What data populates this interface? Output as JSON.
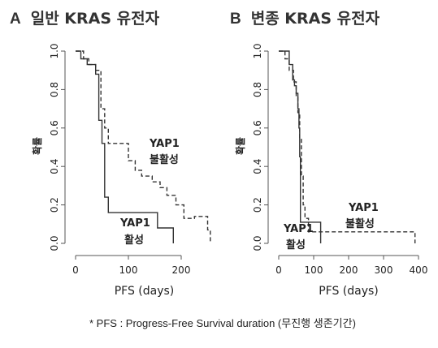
{
  "figure": {
    "footnote": "* PFS : Progress-Free Survival duration (무진행 생존기간)"
  },
  "chart_data": [
    {
      "type": "line",
      "step": true,
      "panel_letter": "A",
      "title": "일반 KRAS 유전자",
      "xlabel": "PFS (days)",
      "ylabel": "확률",
      "xlim": [
        0,
        260
      ],
      "ylim": [
        0,
        1.0
      ],
      "xticks": [
        0,
        100,
        200
      ],
      "yticks": [
        0.0,
        0.2,
        0.4,
        0.6,
        0.8,
        1.0
      ],
      "grid": false,
      "series": [
        {
          "name": "YAP1 활성",
          "line_style": "solid",
          "points": [
            [
              0,
              1.0
            ],
            [
              10,
              1.0
            ],
            [
              10,
              0.96
            ],
            [
              22,
              0.96
            ],
            [
              22,
              0.93
            ],
            [
              38,
              0.93
            ],
            [
              38,
              0.88
            ],
            [
              44,
              0.88
            ],
            [
              44,
              0.64
            ],
            [
              50,
              0.64
            ],
            [
              50,
              0.52
            ],
            [
              55,
              0.52
            ],
            [
              55,
              0.24
            ],
            [
              62,
              0.24
            ],
            [
              62,
              0.16
            ],
            [
              155,
              0.16
            ],
            [
              155,
              0.08
            ],
            [
              185,
              0.08
            ],
            [
              185,
              0.0
            ]
          ]
        },
        {
          "name": "YAP1 불활성",
          "line_style": "dashed",
          "points": [
            [
              0,
              1.0
            ],
            [
              15,
              1.0
            ],
            [
              15,
              0.96
            ],
            [
              25,
              0.96
            ],
            [
              25,
              0.93
            ],
            [
              38,
              0.93
            ],
            [
              38,
              0.9
            ],
            [
              48,
              0.9
            ],
            [
              48,
              0.7
            ],
            [
              55,
              0.7
            ],
            [
              55,
              0.6
            ],
            [
              62,
              0.6
            ],
            [
              62,
              0.52
            ],
            [
              100,
              0.52
            ],
            [
              100,
              0.43
            ],
            [
              113,
              0.43
            ],
            [
              113,
              0.38
            ],
            [
              125,
              0.38
            ],
            [
              125,
              0.35
            ],
            [
              145,
              0.35
            ],
            [
              145,
              0.32
            ],
            [
              160,
              0.32
            ],
            [
              160,
              0.29
            ],
            [
              173,
              0.29
            ],
            [
              173,
              0.25
            ],
            [
              190,
              0.25
            ],
            [
              190,
              0.2
            ],
            [
              205,
              0.2
            ],
            [
              205,
              0.13
            ],
            [
              225,
              0.13
            ],
            [
              225,
              0.14
            ],
            [
              250,
              0.14
            ],
            [
              250,
              0.07
            ],
            [
              255,
              0.07
            ],
            [
              255,
              0.0
            ]
          ]
        }
      ]
    },
    {
      "type": "line",
      "step": true,
      "panel_letter": "B",
      "title": "변종 KRAS 유전자",
      "xlabel": "PFS (days)",
      "ylabel": "확률",
      "xlim": [
        0,
        400
      ],
      "ylim": [
        0,
        1.0
      ],
      "xticks": [
        0,
        100,
        200,
        300,
        400
      ],
      "yticks": [
        0.0,
        0.2,
        0.4,
        0.6,
        0.8,
        1.0
      ],
      "grid": false,
      "series": [
        {
          "name": "YAP1 활성",
          "line_style": "solid",
          "points": [
            [
              0,
              1.0
            ],
            [
              30,
              1.0
            ],
            [
              30,
              0.93
            ],
            [
              40,
              0.93
            ],
            [
              40,
              0.85
            ],
            [
              45,
              0.85
            ],
            [
              45,
              0.82
            ],
            [
              50,
              0.82
            ],
            [
              50,
              0.78
            ],
            [
              55,
              0.78
            ],
            [
              55,
              0.7
            ],
            [
              58,
              0.7
            ],
            [
              58,
              0.6
            ],
            [
              60,
              0.6
            ],
            [
              60,
              0.45
            ],
            [
              62,
              0.45
            ],
            [
              62,
              0.11
            ],
            [
              120,
              0.11
            ],
            [
              120,
              0.0
            ]
          ]
        },
        {
          "name": "YAP1 불활성",
          "line_style": "dashed",
          "points": [
            [
              0,
              1.0
            ],
            [
              18,
              1.0
            ],
            [
              18,
              0.96
            ],
            [
              30,
              0.96
            ],
            [
              30,
              0.9
            ],
            [
              42,
              0.9
            ],
            [
              42,
              0.84
            ],
            [
              50,
              0.84
            ],
            [
              50,
              0.76
            ],
            [
              55,
              0.76
            ],
            [
              55,
              0.68
            ],
            [
              60,
              0.68
            ],
            [
              60,
              0.55
            ],
            [
              65,
              0.55
            ],
            [
              65,
              0.35
            ],
            [
              70,
              0.35
            ],
            [
              70,
              0.2
            ],
            [
              75,
              0.2
            ],
            [
              75,
              0.13
            ],
            [
              85,
              0.13
            ],
            [
              85,
              0.06
            ],
            [
              390,
              0.06
            ],
            [
              390,
              0.0
            ]
          ]
        }
      ]
    }
  ],
  "annotations": {
    "a_inactive_line1": "YAP1",
    "a_inactive_line2": "불활성",
    "a_active_line1": "YAP1",
    "a_active_line2": "활성",
    "b_inactive_line1": "YAP1",
    "b_inactive_line2": "불활성",
    "b_active_line1": "YAP1",
    "b_active_line2": "활성"
  }
}
